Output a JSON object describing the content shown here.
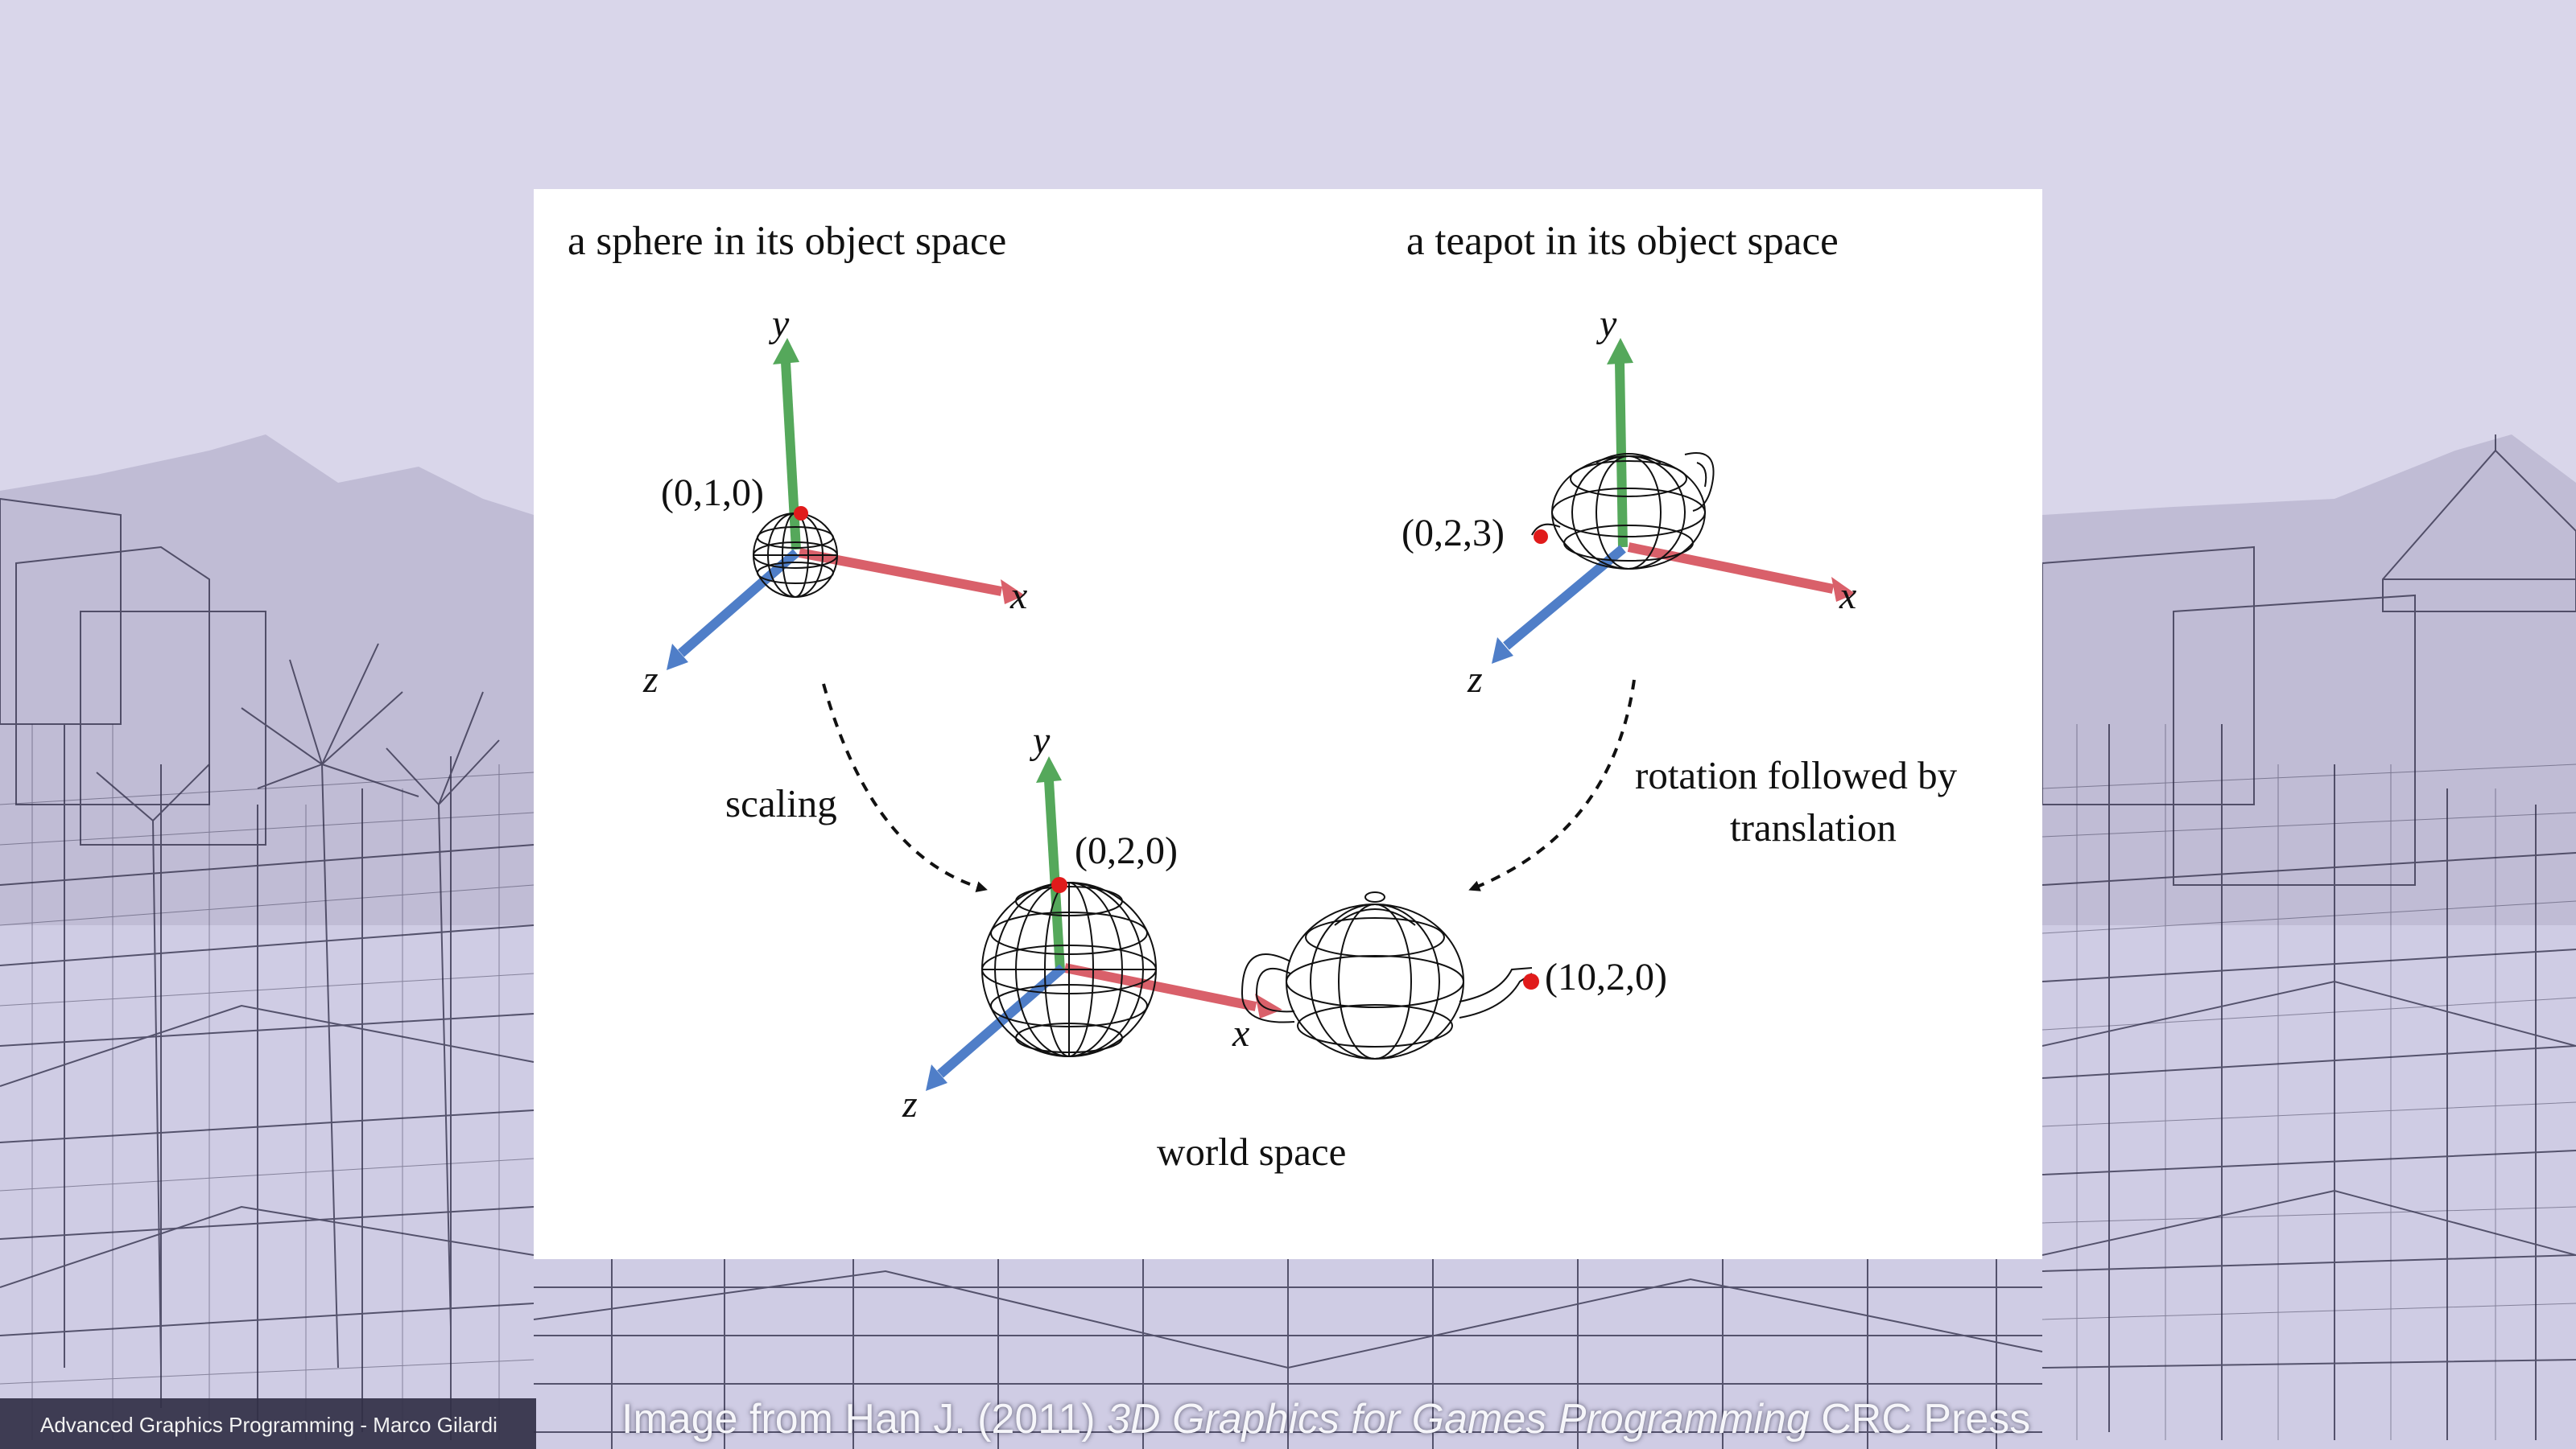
{
  "background": {
    "sky": "#d9d6ea",
    "wire": "#2c2a44",
    "ground": "#cfcce4"
  },
  "figure": {
    "labels": {
      "sphere_title": "a sphere in its object space",
      "teapot_title": "a teapot in its object space",
      "y": "y",
      "x": "x",
      "z": "z",
      "sphere_point": "(0,1,0)",
      "teapot_point": "(0,2,3)",
      "scaling": "scaling",
      "rotation_line1": "rotation followed by",
      "rotation_line2": "translation",
      "world_sphere_point": "(0,2,0)",
      "world_teapot_point": "(10,2,0)",
      "world_space": "world space"
    },
    "colors": {
      "x_axis": "#d9606a",
      "y_axis": "#55a85b",
      "z_axis": "#4f7ec8",
      "point": "#e01b1b",
      "arrow": "#111111"
    }
  },
  "footer": {
    "text": "Advanced Graphics Programming - Marco Gilardi"
  },
  "credit": {
    "prefix": "Image from Han J. (2011) ",
    "title": "3D Graphics for Games Programming",
    "suffix": " CRC Press"
  }
}
